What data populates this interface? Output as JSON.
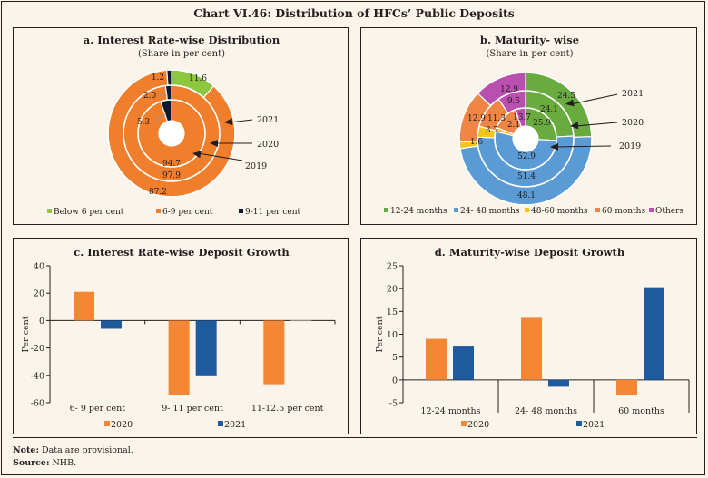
{
  "title": "Chart VI.46: Distribution of HFCs’ Public Deposits",
  "notes": {
    "note_label": "Note:",
    "note_text": "Data are provisional.",
    "source_label": "Source:",
    "source_text": "NHB."
  },
  "chart_data": [
    {
      "id": "a",
      "type": "pie",
      "variant": "nested-donut",
      "title": "a. Interest Rate-wise Distribution",
      "subtitle": "(Share in per cent)",
      "categories": [
        "Below 6 per cent",
        "6-9 per cent",
        "9-11 per cent"
      ],
      "colors": [
        "#8dc63f",
        "#f07f2d",
        "#0d1b2a"
      ],
      "rings": [
        {
          "name": "2019",
          "position": "inner",
          "values": [
            0,
            94.7,
            5.3
          ]
        },
        {
          "name": "2020",
          "position": "middle",
          "values": [
            0,
            97.9,
            2.0
          ]
        },
        {
          "name": "2021",
          "position": "outer",
          "values": [
            11.6,
            87.2,
            1.2
          ]
        }
      ],
      "labels_shown": {
        "2019": [
          "",
          "94.7",
          "5.3"
        ],
        "2020": [
          "",
          "97.9",
          "2.0"
        ],
        "2021": [
          "11.6",
          "87.2",
          "1.2"
        ]
      },
      "legend": "bottom"
    },
    {
      "id": "b",
      "type": "pie",
      "variant": "nested-donut",
      "title": "b. Maturity- wise",
      "subtitle": "(Share in per cent)",
      "categories": [
        "12-24 months",
        "24- 48 months",
        "48-60 months",
        "60 months",
        "Others"
      ],
      "colors": [
        "#6aab3f",
        "#5b9bd5",
        "#f5c518",
        "#ef8646",
        "#b94fae"
      ],
      "rings": [
        {
          "name": "2019",
          "position": "inner",
          "values": [
            25.9,
            52.9,
            2.1,
            13.7,
            5.4
          ]
        },
        {
          "name": "2020",
          "position": "middle",
          "values": [
            24.1,
            51.4,
            3.7,
            11.3,
            9.5
          ]
        },
        {
          "name": "2021",
          "position": "outer",
          "values": [
            24.5,
            48.1,
            1.6,
            12.9,
            12.9
          ]
        }
      ],
      "labels_shown": {
        "2019": [
          "25.9",
          "52.9",
          "2.1",
          "13.7",
          ""
        ],
        "2020": [
          "24.1",
          "51.4",
          "3.7",
          "11.3",
          "9.5"
        ],
        "2021": [
          "24.5",
          "48.1",
          "1.6",
          "12.9",
          "12.9"
        ]
      },
      "legend": "bottom"
    },
    {
      "id": "c",
      "type": "bar",
      "title": "c. Interest Rate-wise Deposit Growth",
      "xlabel": "",
      "ylabel": "Per cent",
      "categories": [
        "6- 9 per cent",
        "9- 11 per cent",
        "11-12.5 per cent"
      ],
      "series": [
        {
          "name": "2020",
          "color": "#f58634",
          "values": [
            21.0,
            -54.5,
            -46.5
          ]
        },
        {
          "name": "2021",
          "color": "#1f5a9e",
          "values": [
            -6.0,
            -40.0,
            -0.5
          ]
        }
      ],
      "ylim": [
        -60,
        40
      ],
      "yticks": [
        40,
        20,
        0,
        -20,
        -40,
        -60
      ],
      "grid": false,
      "legend": "bottom"
    },
    {
      "id": "d",
      "type": "bar",
      "title": "d. Maturity-wise Deposit Growth",
      "xlabel": "",
      "ylabel": "Per cent",
      "categories": [
        "12-24 months",
        "24- 48 months",
        "60 months"
      ],
      "series": [
        {
          "name": "2020",
          "color": "#f58634",
          "values": [
            9.0,
            13.6,
            -3.4
          ]
        },
        {
          "name": "2021",
          "color": "#1f5a9e",
          "values": [
            7.3,
            -1.5,
            20.3
          ]
        }
      ],
      "ylim": [
        -5,
        25
      ],
      "yticks": [
        25,
        20,
        15,
        10,
        5,
        0,
        -5
      ],
      "grid": false,
      "legend": "bottom"
    }
  ]
}
